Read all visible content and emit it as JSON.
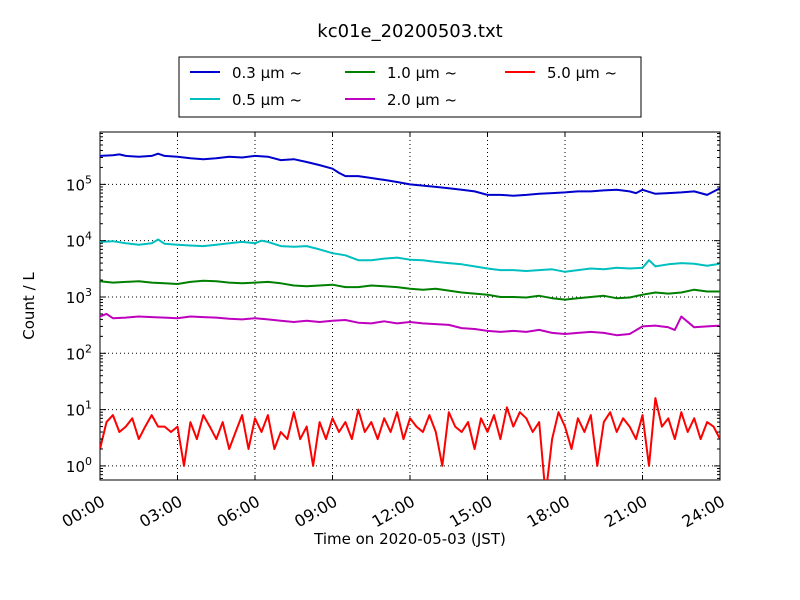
{
  "chart_data": {
    "type": "line",
    "title": "kc01e_20200503.txt",
    "xlabel": "Time on 2020-05-03 (JST)",
    "ylabel": "Count / L",
    "xlim": [
      0,
      24
    ],
    "ylim_log10": [
      -0.25,
      1.5
    ],
    "yscale": "log",
    "grid": true,
    "legend_placement": "top-center",
    "x_ticks": [
      {
        "value": 0,
        "label": "00:00"
      },
      {
        "value": 3,
        "label": "03:00"
      },
      {
        "value": 6,
        "label": "06:00"
      },
      {
        "value": 9,
        "label": "09:00"
      },
      {
        "value": 12,
        "label": "12:00"
      },
      {
        "value": 15,
        "label": "15:00"
      },
      {
        "value": 18,
        "label": "18:00"
      },
      {
        "value": 21,
        "label": "21:00"
      },
      {
        "value": 24,
        "label": "24:00"
      }
    ],
    "y_ticks": [
      {
        "value": 1,
        "base": "10",
        "exp": "0"
      },
      {
        "value": 10,
        "base": "10",
        "exp": "1"
      },
      {
        "value": 100,
        "base": "10",
        "exp": "2"
      },
      {
        "value": 1000,
        "base": "10",
        "exp": "3"
      },
      {
        "value": 10000,
        "base": "10",
        "exp": "4"
      },
      {
        "value": 100000,
        "base": "10",
        "exp": "5"
      }
    ],
    "series": [
      {
        "name": "0.3 μm ~",
        "color": "#0000cc",
        "x": [
          0,
          0.5,
          0.75,
          1,
          1.5,
          2,
          2.25,
          2.5,
          3,
          3.5,
          4,
          4.5,
          5,
          5.5,
          6,
          6.5,
          7,
          7.5,
          8,
          8.5,
          9,
          9.25,
          9.5,
          10,
          10.5,
          11,
          11.5,
          12,
          12.5,
          13,
          13.5,
          14,
          14.5,
          15,
          15.5,
          16,
          16.5,
          17,
          17.5,
          18,
          18.5,
          19,
          19.5,
          20,
          20.5,
          20.75,
          21,
          21.5,
          22,
          22.5,
          23,
          23.5,
          24
        ],
        "values": [
          320000,
          330000,
          340000,
          320000,
          310000,
          320000,
          350000,
          320000,
          310000,
          290000,
          280000,
          290000,
          310000,
          300000,
          320000,
          310000,
          270000,
          280000,
          250000,
          220000,
          190000,
          160000,
          140000,
          140000,
          130000,
          120000,
          110000,
          100000,
          95000,
          90000,
          85000,
          80000,
          75000,
          65000,
          65000,
          63000,
          65000,
          68000,
          70000,
          72000,
          75000,
          75000,
          78000,
          80000,
          75000,
          70000,
          80000,
          68000,
          70000,
          72000,
          75000,
          65000,
          85000
        ]
      },
      {
        "name": "0.5 μm ~",
        "color": "#00bfbf",
        "x": [
          0,
          0.5,
          1,
          1.5,
          2,
          2.25,
          2.5,
          3,
          3.5,
          4,
          4.5,
          5,
          5.5,
          6,
          6.25,
          6.5,
          7,
          7.5,
          8,
          8.5,
          9,
          9.5,
          10,
          10.5,
          11,
          11.5,
          12,
          12.5,
          13,
          13.5,
          14,
          14.5,
          15,
          15.5,
          16,
          16.5,
          17,
          17.5,
          18,
          18.5,
          19,
          19.5,
          20,
          20.5,
          21,
          21.25,
          21.5,
          22,
          22.5,
          23,
          23.5,
          24
        ],
        "values": [
          9500,
          9800,
          9000,
          8500,
          9000,
          10500,
          8800,
          8500,
          8200,
          8000,
          8500,
          9000,
          9500,
          9000,
          10000,
          9500,
          8000,
          7800,
          8000,
          7000,
          6000,
          5500,
          4500,
          4500,
          4800,
          5000,
          4600,
          4500,
          4200,
          4000,
          3800,
          3500,
          3200,
          3000,
          3000,
          2900,
          3000,
          3100,
          2800,
          3000,
          3200,
          3100,
          3300,
          3200,
          3300,
          4500,
          3500,
          3800,
          4000,
          3900,
          3600,
          3900
        ]
      },
      {
        "name": "1.0 μm ~",
        "color": "#008000",
        "x": [
          0,
          0.5,
          1,
          1.5,
          2,
          2.5,
          3,
          3.5,
          4,
          4.5,
          5,
          5.5,
          6,
          6.5,
          7,
          7.5,
          8,
          8.5,
          9,
          9.5,
          10,
          10.5,
          11,
          11.5,
          12,
          12.5,
          13,
          13.5,
          14,
          14.5,
          15,
          15.5,
          16,
          16.5,
          17,
          17.5,
          18,
          18.5,
          19,
          19.5,
          20,
          20.5,
          21,
          21.5,
          22,
          22.5,
          23,
          23.5,
          24
        ],
        "values": [
          1900,
          1800,
          1850,
          1900,
          1800,
          1750,
          1700,
          1850,
          1950,
          1900,
          1800,
          1750,
          1800,
          1850,
          1750,
          1600,
          1550,
          1600,
          1650,
          1500,
          1500,
          1600,
          1550,
          1500,
          1400,
          1350,
          1400,
          1300,
          1200,
          1150,
          1100,
          1000,
          1000,
          980,
          1050,
          950,
          900,
          950,
          1000,
          1050,
          950,
          980,
          1100,
          1200,
          1150,
          1200,
          1350,
          1250,
          1250
        ]
      },
      {
        "name": "2.0 μm ~",
        "color": "#bf00bf",
        "x": [
          0,
          0.25,
          0.5,
          1,
          1.5,
          2,
          2.5,
          3,
          3.5,
          4,
          4.5,
          5,
          5.5,
          6,
          6.5,
          7,
          7.5,
          8,
          8.5,
          9,
          9.5,
          10,
          10.5,
          11,
          11.5,
          12,
          12.5,
          13,
          13.5,
          14,
          14.5,
          15,
          15.5,
          16,
          16.5,
          17,
          17.5,
          18,
          18.5,
          19,
          19.5,
          20,
          20.5,
          21,
          21.5,
          22,
          22.25,
          22.5,
          23,
          23.5,
          24
        ],
        "values": [
          450,
          500,
          420,
          430,
          450,
          440,
          430,
          420,
          450,
          440,
          430,
          410,
          400,
          420,
          400,
          380,
          360,
          380,
          360,
          380,
          390,
          350,
          340,
          370,
          340,
          360,
          340,
          330,
          320,
          280,
          270,
          250,
          240,
          250,
          240,
          260,
          230,
          220,
          230,
          240,
          230,
          210,
          220,
          300,
          310,
          290,
          260,
          450,
          290,
          300,
          310
        ]
      },
      {
        "name": "5.0 μm ~",
        "color": "#ff0000",
        "x": [
          0,
          0.25,
          0.5,
          0.75,
          1,
          1.25,
          1.5,
          1.75,
          2,
          2.25,
          2.5,
          2.75,
          3,
          3.25,
          3.5,
          3.75,
          4,
          4.25,
          4.5,
          4.75,
          5,
          5.25,
          5.5,
          5.75,
          6,
          6.25,
          6.5,
          6.75,
          7,
          7.25,
          7.5,
          7.75,
          8,
          8.25,
          8.5,
          8.75,
          9,
          9.25,
          9.5,
          9.75,
          10,
          10.25,
          10.5,
          10.75,
          11,
          11.25,
          11.5,
          11.75,
          12,
          12.25,
          12.5,
          12.75,
          13,
          13.25,
          13.5,
          13.75,
          14,
          14.25,
          14.5,
          14.75,
          15,
          15.25,
          15.5,
          15.75,
          16,
          16.25,
          16.5,
          16.75,
          17,
          17.25,
          17.5,
          17.75,
          18,
          18.25,
          18.5,
          18.75,
          19,
          19.25,
          19.5,
          19.75,
          20,
          20.25,
          20.5,
          20.75,
          21,
          21.25,
          21.5,
          21.75,
          22,
          22.25,
          22.5,
          22.75,
          23,
          23.25,
          23.5,
          23.75,
          24
        ],
        "values": [
          2,
          6,
          8,
          4,
          5,
          7,
          3,
          5,
          8,
          5,
          5,
          4,
          5,
          1,
          6,
          3,
          8,
          5,
          3,
          6,
          2,
          4,
          8,
          2,
          7,
          4,
          8,
          2,
          4,
          3,
          9,
          3,
          5,
          1,
          6,
          3,
          7,
          4,
          6,
          3,
          10,
          4,
          6,
          3,
          7,
          4,
          9,
          3,
          7,
          5,
          4,
          8,
          4,
          1,
          9,
          5,
          4,
          6,
          2,
          7,
          4,
          8,
          3,
          11,
          5,
          9,
          7,
          4,
          6,
          0.3,
          3,
          9,
          5,
          2,
          7,
          4,
          8,
          1,
          6,
          9,
          4,
          7,
          5,
          3,
          8,
          1,
          16,
          5,
          7,
          3,
          9,
          4,
          7,
          3,
          6,
          5,
          3
        ]
      }
    ]
  }
}
